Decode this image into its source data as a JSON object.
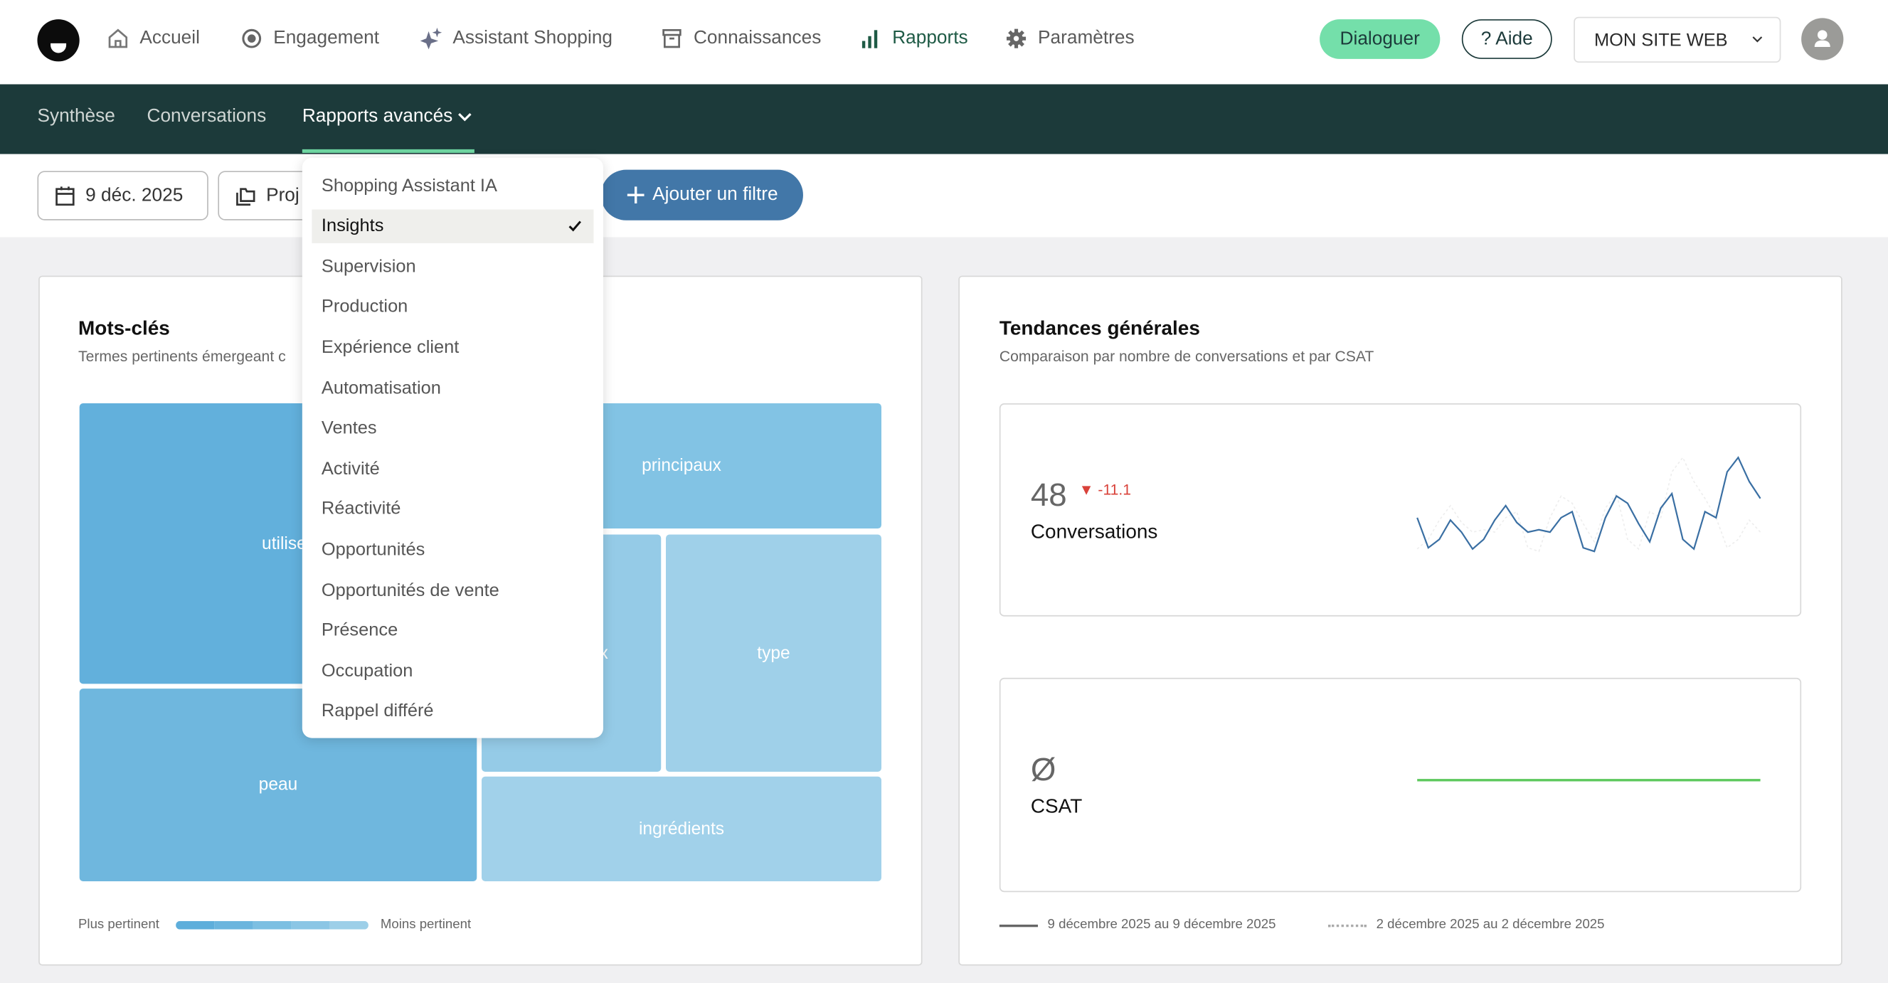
{
  "topnav": {
    "items": [
      {
        "label": "Accueil",
        "icon": "home-icon"
      },
      {
        "label": "Engagement",
        "icon": "target-icon"
      },
      {
        "label": "Assistant Shopping",
        "icon": "sparkle-icon"
      },
      {
        "label": "Connaissances",
        "icon": "archive-icon"
      },
      {
        "label": "Rapports",
        "icon": "bar-chart-icon",
        "active": true
      },
      {
        "label": "Paramètres",
        "icon": "gear-icon"
      }
    ],
    "dialog_label": "Dialoguer",
    "help_label": "? Aide",
    "site_label": "MON SITE WEB"
  },
  "subnav": {
    "items": [
      "Synthèse",
      "Conversations",
      "Rapports avancés"
    ],
    "active": "Rapports avancés"
  },
  "filters": {
    "date": "9 déc. 2025",
    "project": "Proj",
    "add_filter": "Ajouter un filtre"
  },
  "dropdown": {
    "items": [
      "Shopping Assistant IA",
      "Insights",
      "Supervision",
      "Production",
      "Expérience client",
      "Automatisation",
      "Ventes",
      "Activité",
      "Réactivité",
      "Opportunités",
      "Opportunités de vente",
      "Présence",
      "Occupation",
      "Rappel différé"
    ],
    "selected": "Insights"
  },
  "keywords": {
    "title": "Mots-clés",
    "subtitle": "Termes pertinents émergeant c",
    "tiles": [
      "utilise",
      "peau",
      "principaux",
      "x",
      "type",
      "ingrédients"
    ],
    "legend_more": "Plus pertinent",
    "legend_less": "Moins pertinent",
    "colors": [
      "#62b0dc",
      "#6fb7de",
      "#82c3e4",
      "#95cbe7",
      "#9fd0e9",
      "#a1d1ea"
    ]
  },
  "trends": {
    "title": "Tendances générales",
    "subtitle": "Comparaison par nombre de conversations et par CSAT",
    "conversations": {
      "value": "48",
      "delta": "-11.1",
      "label": "Conversations",
      "delta_color": "#d9423a",
      "line_color": "#3a6fa3"
    },
    "csat": {
      "value": "Ø",
      "label": "CSAT",
      "line_color": "#5cc85c"
    },
    "legend_current": "9 décembre 2025 au 9 décembre 2025",
    "legend_previous": "2 décembre 2025 au 2 décembre 2025"
  },
  "colors": {
    "brand_dark": "#1c3a3a",
    "accent_green": "#74dfaa",
    "filter_blue": "#4277a8"
  }
}
